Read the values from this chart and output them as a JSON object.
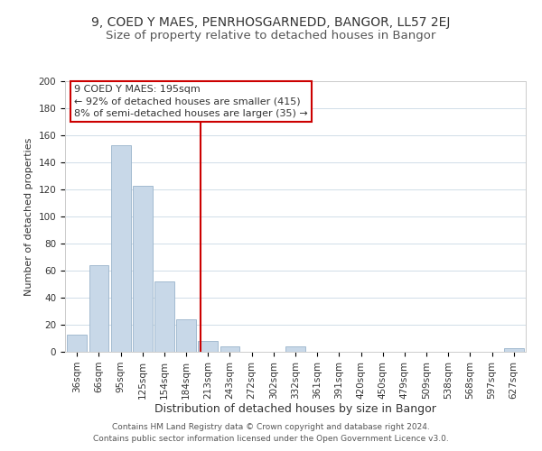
{
  "title1": "9, COED Y MAES, PENRHOSGARNEDD, BANGOR, LL57 2EJ",
  "title2": "Size of property relative to detached houses in Bangor",
  "xlabel": "Distribution of detached houses by size in Bangor",
  "ylabel": "Number of detached properties",
  "bar_labels": [
    "36sqm",
    "66sqm",
    "95sqm",
    "125sqm",
    "154sqm",
    "184sqm",
    "213sqm",
    "243sqm",
    "272sqm",
    "302sqm",
    "332sqm",
    "361sqm",
    "391sqm",
    "420sqm",
    "450sqm",
    "479sqm",
    "509sqm",
    "538sqm",
    "568sqm",
    "597sqm",
    "627sqm"
  ],
  "bar_values": [
    13,
    64,
    153,
    123,
    52,
    24,
    8,
    4,
    0,
    0,
    4,
    0,
    0,
    0,
    0,
    0,
    0,
    0,
    0,
    0,
    3
  ],
  "bar_color": "#c8d8e8",
  "bar_edge_color": "#9ab4cb",
  "vline_x": 5.67,
  "vline_color": "#cc0000",
  "ylim": [
    0,
    200
  ],
  "yticks": [
    0,
    20,
    40,
    60,
    80,
    100,
    120,
    140,
    160,
    180,
    200
  ],
  "annotation_line1": "9 COED Y MAES: 195sqm",
  "annotation_line2": "← 92% of detached houses are smaller (415)",
  "annotation_line3": "8% of semi-detached houses are larger (35) →",
  "annotation_box_color": "#ffffff",
  "annotation_box_edge_color": "#cc0000",
  "footer1": "Contains HM Land Registry data © Crown copyright and database right 2024.",
  "footer2": "Contains public sector information licensed under the Open Government Licence v3.0.",
  "background_color": "#ffffff",
  "grid_color": "#d0dde8",
  "title1_fontsize": 10,
  "title2_fontsize": 9.5,
  "xlabel_fontsize": 9,
  "ylabel_fontsize": 8,
  "tick_fontsize": 7.5,
  "annotation_fontsize": 8,
  "footer_fontsize": 6.5
}
